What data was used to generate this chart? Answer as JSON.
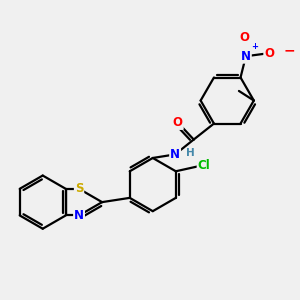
{
  "bg_color": "#f0f0f0",
  "bond_color": "#000000",
  "bond_width": 1.6,
  "dbo": 0.055,
  "atom_colors": {
    "O": "#ff0000",
    "N": "#0000ff",
    "S": "#ccaa00",
    "Cl": "#00bb00",
    "H": "#4488aa",
    "C": "#000000"
  },
  "fs": 8.5,
  "fs_small": 7.5
}
